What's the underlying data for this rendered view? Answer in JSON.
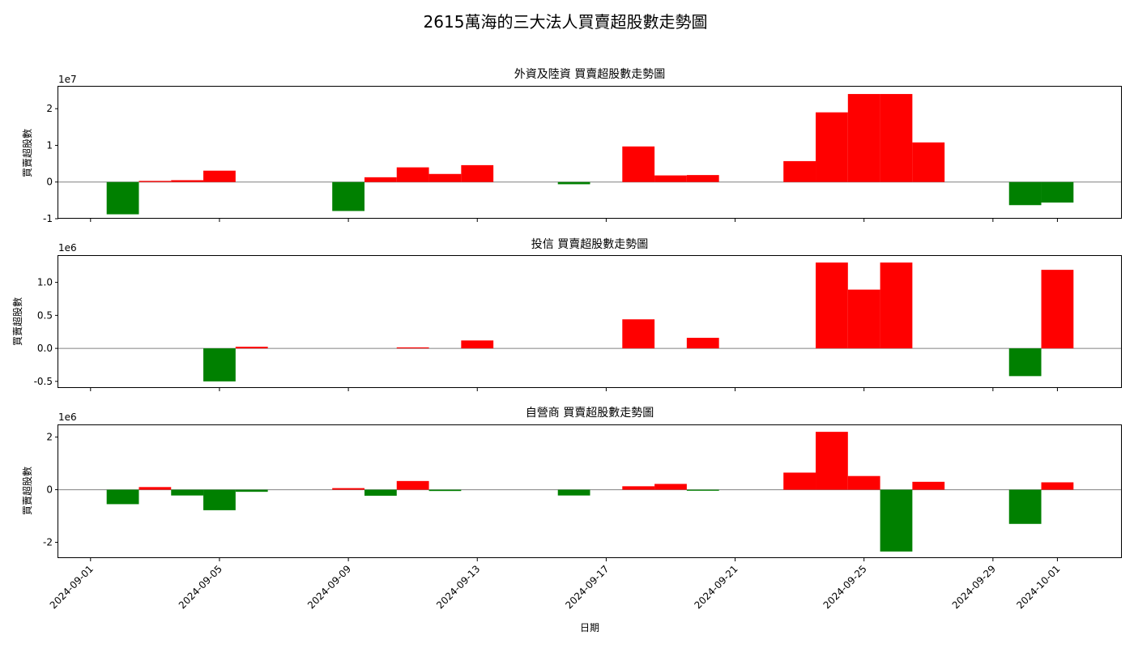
{
  "figure": {
    "title": "2615萬海的三大法人買賣超股數走勢圖",
    "xlabel": "日期",
    "x_ticks": [
      "2024-09-01",
      "2024-09-05",
      "2024-09-09",
      "2024-09-13",
      "2024-09-17",
      "2024-09-21",
      "2024-09-25",
      "2024-09-29",
      "2024-10-01"
    ],
    "x_range": [
      "2024-08-31",
      "2024-10-03"
    ]
  },
  "colors": {
    "positive": "#ff0000",
    "negative": "#008000",
    "zero_line": "#808080"
  },
  "chart_data": [
    {
      "type": "bar",
      "title": "外資及陸資 買賣超股數走勢圖",
      "ylabel": "買賣超股數",
      "offset_label": "1e7",
      "scale": 10000000,
      "ylim": [
        -1.0,
        2.6
      ],
      "y_ticks": [
        -1,
        0,
        1,
        2
      ],
      "y_tick_labels": [
        "-1",
        "0",
        "1",
        "2"
      ],
      "series": [
        {
          "x": [
            "2024-09-02",
            "2024-09-03",
            "2024-09-04",
            "2024-09-05",
            "2024-09-09",
            "2024-09-10",
            "2024-09-11",
            "2024-09-12",
            "2024-09-13",
            "2024-09-16",
            "2024-09-18",
            "2024-09-19",
            "2024-09-20",
            "2024-09-23",
            "2024-09-24",
            "2024-09-25",
            "2024-09-26",
            "2024-09-27",
            "2024-09-30",
            "2024-10-01"
          ],
          "values": [
            -8800000,
            300000,
            500000,
            3100000,
            -7900000,
            1300000,
            4000000,
            2200000,
            4600000,
            -600000,
            9700000,
            1800000,
            1900000,
            5700000,
            19000000,
            24000000,
            24000000,
            10800000,
            -6300000,
            -5600000
          ]
        }
      ]
    },
    {
      "type": "bar",
      "title": "投信 買賣超股數走勢圖",
      "ylabel": "買賣超股數",
      "offset_label": "1e6",
      "scale": 1000000,
      "ylim": [
        -0.6,
        1.4
      ],
      "y_ticks": [
        -0.5,
        0.0,
        0.5,
        1.0
      ],
      "y_tick_labels": [
        "-0.5",
        "0.0",
        "0.5",
        "1.0"
      ],
      "series": [
        {
          "x": [
            "2024-09-05",
            "2024-09-06",
            "2024-09-11",
            "2024-09-13",
            "2024-09-18",
            "2024-09-20",
            "2024-09-24",
            "2024-09-25",
            "2024-09-26",
            "2024-09-30",
            "2024-10-01"
          ],
          "values": [
            -500000,
            25000,
            15000,
            120000,
            440000,
            160000,
            1300000,
            890000,
            1300000,
            -420000,
            1190000
          ]
        }
      ]
    },
    {
      "type": "bar",
      "title": "自營商 買賣超股數走勢圖",
      "ylabel": "買賣超股數",
      "offset_label": "1e6",
      "scale": 1000000,
      "ylim": [
        -2.6,
        2.45
      ],
      "y_ticks": [
        -2,
        0,
        2
      ],
      "y_tick_labels": [
        "-2",
        "0",
        "2"
      ],
      "series": [
        {
          "x": [
            "2024-09-02",
            "2024-09-03",
            "2024-09-04",
            "2024-09-05",
            "2024-09-06",
            "2024-09-09",
            "2024-09-10",
            "2024-09-11",
            "2024-09-12",
            "2024-09-16",
            "2024-09-18",
            "2024-09-19",
            "2024-09-20",
            "2024-09-23",
            "2024-09-24",
            "2024-09-25",
            "2024-09-26",
            "2024-09-27",
            "2024-09-30",
            "2024-10-01"
          ],
          "values": [
            -550000,
            100000,
            -220000,
            -780000,
            -80000,
            60000,
            -230000,
            330000,
            -50000,
            -220000,
            130000,
            220000,
            -40000,
            650000,
            2200000,
            520000,
            -2350000,
            300000,
            -1300000,
            280000
          ]
        }
      ]
    }
  ]
}
